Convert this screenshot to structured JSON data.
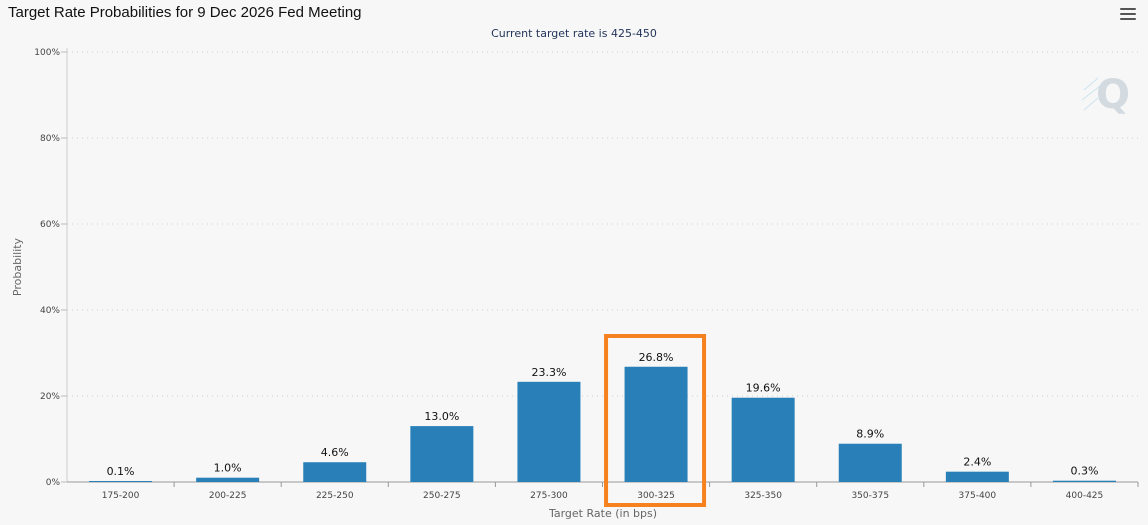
{
  "page": {
    "title": "Target Rate Probabilities for 9 Dec 2026 Fed Meeting",
    "subtitle": "Current target rate is 425-450",
    "menu_icon": "hamburger-menu-icon",
    "watermark_icon": "q-logo-icon"
  },
  "chart_data": {
    "type": "bar",
    "title": "Target Rate Probabilities for 9 Dec 2026 Fed Meeting",
    "subtitle": "Current target rate is 425-450",
    "xlabel": "Target Rate (in bps)",
    "ylabel": "Probability",
    "categories": [
      "175-200",
      "200-225",
      "225-250",
      "250-275",
      "275-300",
      "300-325",
      "325-350",
      "350-375",
      "375-400",
      "400-425"
    ],
    "values": [
      0.1,
      1.0,
      4.6,
      13.0,
      23.3,
      26.8,
      19.6,
      8.9,
      2.4,
      0.3
    ],
    "data_labels": [
      "0.1%",
      "1.0%",
      "4.6%",
      "13.0%",
      "23.3%",
      "26.8%",
      "19.6%",
      "8.9%",
      "2.4%",
      "0.3%"
    ],
    "ylim": [
      0,
      100
    ],
    "yticks": [
      "0%",
      "20%",
      "40%",
      "60%",
      "80%",
      "100%"
    ],
    "ytick_values": [
      0,
      20,
      40,
      60,
      80,
      100
    ],
    "grid": true,
    "bar_color": "#2980b9",
    "highlight_category": "300-325",
    "highlight_color": "#f5821f"
  }
}
